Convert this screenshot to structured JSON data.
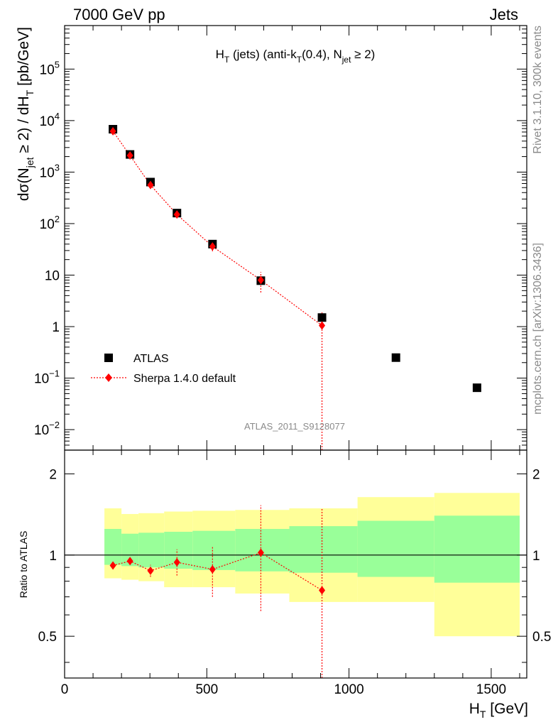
{
  "header": {
    "left": "7000 GeV pp",
    "right": "Jets",
    "side_rivet": "Rivet 3.1.10,  300k events",
    "side_mcplots": "mcplots.cern.ch [arXiv:1306.3436]",
    "analysis": "ATLAS_2011_S9128077"
  },
  "chart_data": [
    {
      "type": "scatter",
      "panel": "main",
      "title_parts": {
        "a": "H",
        "a_sub": "T",
        "b": " (jets) (anti-k",
        "b_sub": "T",
        "c": "(0.4), N",
        "c_sub": "jet",
        "d": " ≥ 2)"
      },
      "ylabel_parts": {
        "a": "dσ(N",
        "a_sub": "jet",
        "b": " ≥ 2) / dH",
        "b_sub": "T",
        "c": " [pb/GeV]"
      },
      "yscale": "log",
      "ylim": [
        0.004,
        700000
      ],
      "xlim": [
        0,
        1625
      ],
      "y_tick_labels": [
        {
          "v": 100000,
          "base": "10",
          "exp": "5"
        },
        {
          "v": 10000,
          "base": "10",
          "exp": "4"
        },
        {
          "v": 1000,
          "base": "10",
          "exp": "3"
        },
        {
          "v": 100,
          "base": "10",
          "exp": "2"
        },
        {
          "v": 10,
          "base": "10",
          "exp": ""
        },
        {
          "v": 1,
          "base": "1",
          "exp": ""
        },
        {
          "v": 0.1,
          "base": "10",
          "exp": "−1"
        },
        {
          "v": 0.01,
          "base": "10",
          "exp": "−2"
        }
      ],
      "legend": [
        "ATLAS",
        "Sherpa 1.4.0 default"
      ],
      "series": [
        {
          "name": "ATLAS",
          "color": "#000000",
          "marker": "square",
          "x": [
            170,
            230,
            302,
            395,
            520,
            690,
            905,
            1165,
            1450
          ],
          "y": [
            6800,
            2200,
            640,
            160,
            40,
            7.8,
            1.5,
            0.25,
            0.065
          ]
        },
        {
          "name": "Sherpa 1.4.0 default",
          "color": "#ff0000",
          "marker": "diamond",
          "x": [
            170,
            230,
            302,
            395,
            520,
            690,
            905
          ],
          "y": [
            6200,
            2100,
            560,
            150,
            36,
            8.0,
            1.05
          ],
          "err_lo": [
            5700,
            1950,
            510,
            136,
            29,
            4.6,
            0.001
          ],
          "err_hi": [
            6700,
            2250,
            610,
            164,
            43,
            11.5,
            2.0
          ]
        }
      ]
    },
    {
      "type": "line",
      "panel": "ratio",
      "ylabel": "Ratio to ATLAS",
      "yscale": "log",
      "ylim": [
        0.35,
        2.45
      ],
      "xlim": [
        0,
        1625
      ],
      "xlabel": "H",
      "xlabel_sub": "T",
      "xlabel_unit": " [GeV]",
      "x_tick_labels": [
        0,
        500,
        1000,
        1500
      ],
      "y_tick_labels": [
        0.5,
        1,
        2
      ],
      "reference_line": 1,
      "bands": {
        "edges": [
          140,
          200,
          260,
          350,
          450,
          600,
          790,
          1030,
          1300,
          1600
        ],
        "inner_lo": [
          0.92,
          0.91,
          0.9,
          0.89,
          0.88,
          0.87,
          0.86,
          0.83,
          0.79
        ],
        "inner_hi": [
          1.25,
          1.2,
          1.21,
          1.22,
          1.23,
          1.25,
          1.28,
          1.34,
          1.4
        ],
        "outer_lo": [
          0.82,
          0.81,
          0.8,
          0.76,
          0.76,
          0.72,
          0.67,
          0.67,
          0.5
        ],
        "outer_hi": [
          1.49,
          1.42,
          1.43,
          1.45,
          1.46,
          1.47,
          1.49,
          1.64,
          1.7
        ],
        "inner_color": "#99ff99",
        "outer_color": "#ffff99"
      },
      "series": [
        {
          "name": "Sherpa 1.4.0 default",
          "color": "#ff0000",
          "x": [
            170,
            230,
            302,
            395,
            520,
            690,
            905
          ],
          "y": [
            0.915,
            0.95,
            0.875,
            0.94,
            0.885,
            1.02,
            0.74
          ],
          "err_lo": [
            0.89,
            0.92,
            0.83,
            0.84,
            0.7,
            0.62,
            0.3
          ],
          "err_hi": [
            0.94,
            0.985,
            0.92,
            1.05,
            1.08,
            1.53,
            1.49
          ]
        }
      ]
    }
  ]
}
